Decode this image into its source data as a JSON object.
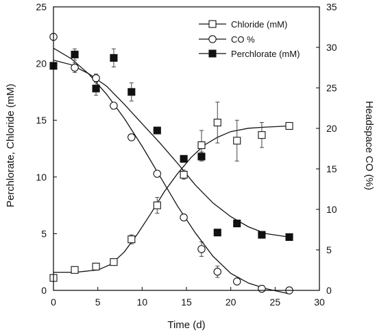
{
  "chart_data": {
    "type": "scatter",
    "xlabel": "Time (d)",
    "ylabel_left": "Perchlorate, Chloride (mM)",
    "ylabel_right": "Headspace CO (%)",
    "xlim": [
      0,
      30
    ],
    "ylim_left": [
      0,
      25
    ],
    "ylim_right": [
      0,
      35
    ],
    "x_ticks": [
      "0",
      "5",
      "10",
      "15",
      "20",
      "25",
      "30"
    ],
    "y_left_ticks": [
      "0",
      "5",
      "10",
      "15",
      "20",
      "25"
    ],
    "y_right_ticks": [
      "0",
      "5",
      "10",
      "15",
      "20",
      "25",
      "30",
      "35"
    ],
    "grid": false,
    "legend_position": "top-right",
    "series": [
      {
        "name": "Chloride (mM)",
        "axis": "left",
        "marker": "open-square",
        "x": [
          0,
          2.4,
          4.8,
          6.8,
          8.8,
          11.7,
          14.7,
          16.7,
          18.5,
          20.7,
          23.5,
          26.6
        ],
        "y": [
          1.1,
          1.8,
          2.1,
          2.5,
          4.5,
          7.5,
          10.2,
          12.8,
          14.8,
          13.2,
          13.7,
          14.5
        ],
        "err": [
          0.1,
          0.2,
          0.2,
          0.2,
          0.4,
          0.7,
          0.4,
          1.3,
          1.8,
          1.8,
          1.1,
          0.1
        ],
        "fit_x": [
          0,
          2.5,
          5,
          6.5,
          8,
          9.5,
          11,
          12.5,
          14,
          15.5,
          17,
          18.5,
          20,
          22,
          24,
          26.6
        ],
        "fit_y": [
          1.6,
          1.6,
          1.8,
          2.3,
          3.4,
          5.0,
          6.8,
          8.7,
          10.3,
          11.7,
          12.8,
          13.5,
          14.0,
          14.3,
          14.4,
          14.5
        ]
      },
      {
        "name": "CO %",
        "axis": "right",
        "marker": "open-circle",
        "x": [
          0,
          2.4,
          4.8,
          6.8,
          8.8,
          11.7,
          14.7,
          16.7,
          18.5,
          20.7,
          23.5,
          26.6
        ],
        "y": [
          31.3,
          27.5,
          26.2,
          22.8,
          18.9,
          14.4,
          9.0,
          5.1,
          2.3,
          1.1,
          0.2,
          0.0
        ],
        "err": [
          0.3,
          0.6,
          0.5,
          0.4,
          0.4,
          0.4,
          0.4,
          0.9,
          0.7,
          0.3,
          0.2,
          0.1
        ],
        "fit_x": [
          0,
          2,
          4,
          6,
          8,
          10,
          12,
          14,
          16,
          18,
          20,
          22,
          24,
          26.5
        ],
        "fit_y": [
          29.9,
          28.6,
          26.7,
          24.2,
          21.2,
          17.8,
          14.1,
          10.4,
          7.1,
          4.2,
          2.1,
          0.9,
          0.2,
          -0.4
        ]
      },
      {
        "name": "Perchlorate (mM)",
        "axis": "left",
        "marker": "filled-square",
        "x": [
          0,
          2.4,
          4.8,
          6.8,
          8.8,
          11.7,
          14.7,
          16.7,
          18.5,
          20.7,
          23.5,
          26.6
        ],
        "y": [
          19.8,
          20.8,
          17.8,
          20.5,
          17.5,
          14.1,
          11.6,
          11.8,
          5.1,
          5.9,
          4.9,
          4.7
        ],
        "err": [
          0.3,
          0.5,
          0.6,
          0.8,
          0.8,
          0.3,
          0.2,
          0.4,
          0.1,
          0.1,
          0.1,
          0.1
        ],
        "fit_x": [
          0,
          2,
          4,
          6,
          8,
          10,
          12,
          14,
          16,
          18,
          20,
          22,
          24,
          26.6
        ],
        "fit_y": [
          20.3,
          19.9,
          19.1,
          18.0,
          16.4,
          14.7,
          13.0,
          11.2,
          9.3,
          7.7,
          6.5,
          5.6,
          5.0,
          4.7
        ]
      }
    ]
  }
}
